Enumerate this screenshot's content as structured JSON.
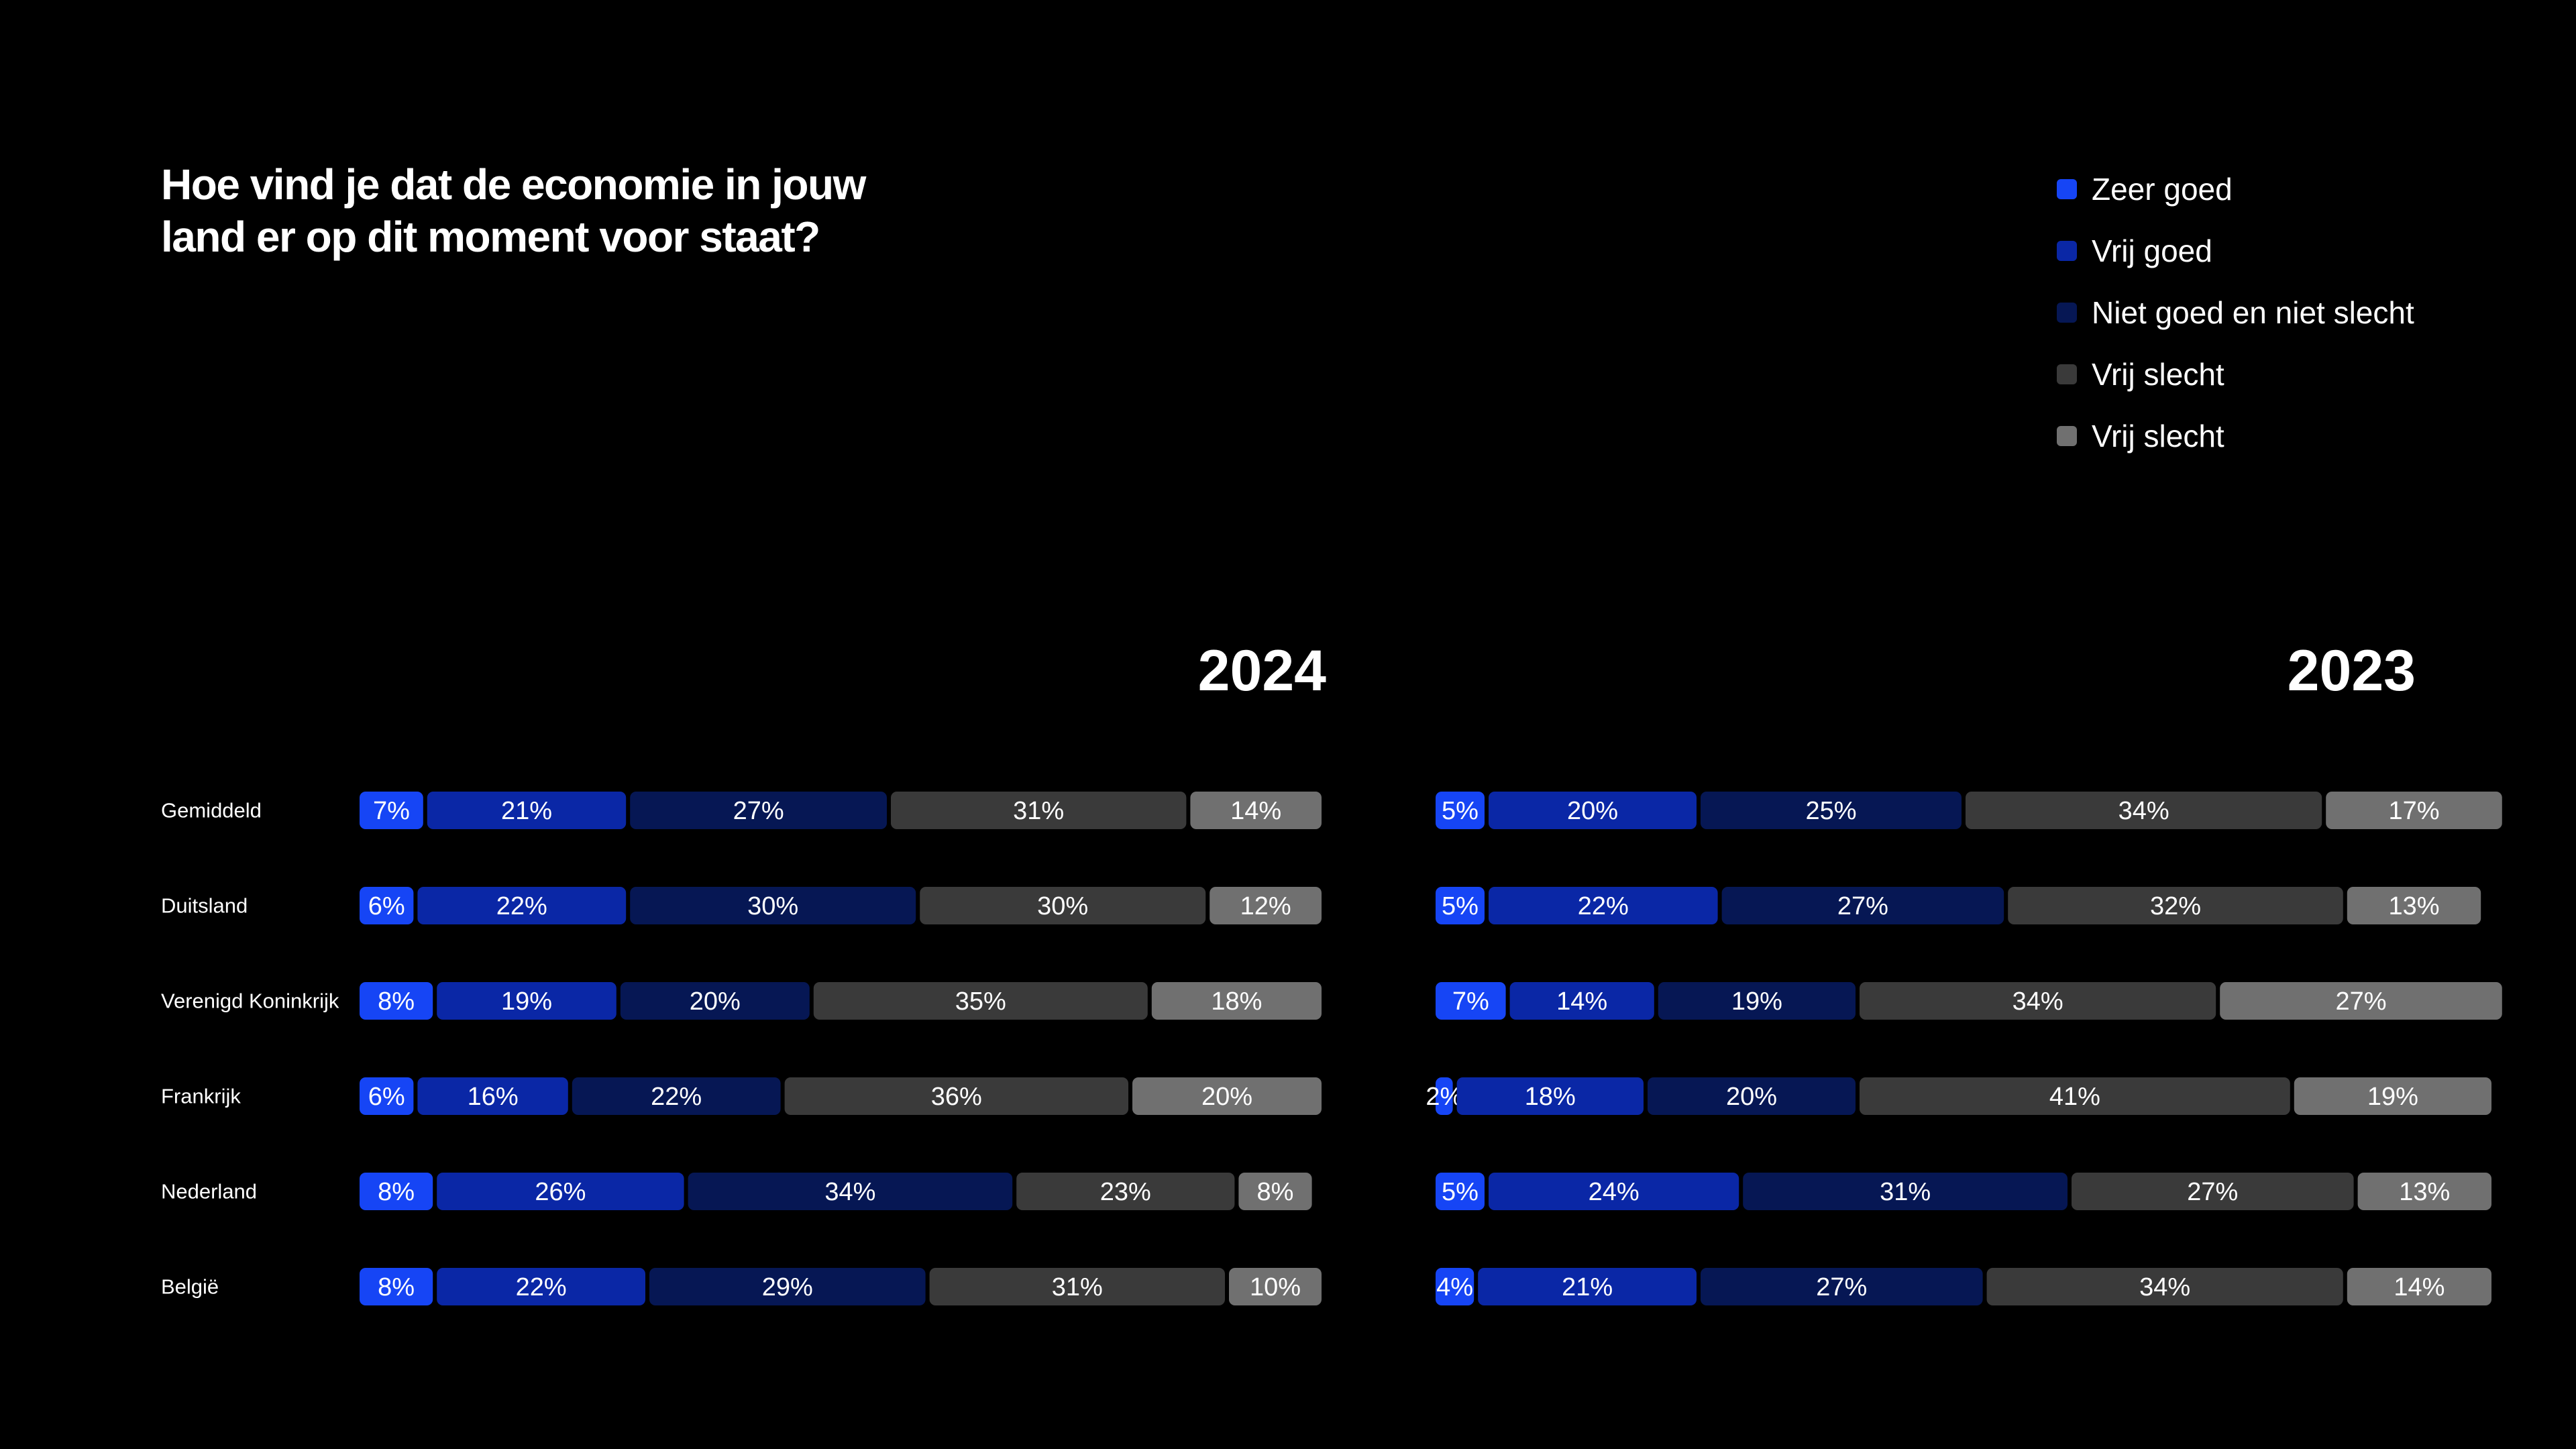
{
  "title": "Hoe vind je dat de economie in jouw land er op dit moment voor staat?",
  "title_lines": [
    "Hoe vind je dat de economie in jouw",
    "land er op dit moment voor staat?"
  ],
  "legend": [
    {
      "label": "Zeer goed",
      "color": "#1645F5"
    },
    {
      "label": "Vrij goed",
      "color": "#0A27A6"
    },
    {
      "label": "Niet goed en niet slecht",
      "color": "#061754"
    },
    {
      "label": "Vrij slecht",
      "color": "#3A3A3A"
    },
    {
      "label": "Vrij slecht",
      "color": "#707070"
    }
  ],
  "chart_data": [
    {
      "type": "bar",
      "orientation": "horizontal",
      "stacked": true,
      "title": "2024",
      "categories": [
        "Gemiddeld",
        "Duitsland",
        "Verenigd Koninkrijk",
        "Frankrijk",
        "Nederland",
        "België"
      ],
      "series": [
        {
          "name": "Zeer goed",
          "values": [
            7,
            6,
            8,
            6,
            8,
            8
          ]
        },
        {
          "name": "Vrij goed",
          "values": [
            21,
            22,
            19,
            16,
            26,
            22
          ]
        },
        {
          "name": "Niet goed en niet slecht",
          "values": [
            27,
            30,
            20,
            22,
            34,
            29
          ]
        },
        {
          "name": "Vrij slecht",
          "values": [
            31,
            30,
            35,
            36,
            23,
            31
          ]
        },
        {
          "name": "Vrij slecht",
          "values": [
            14,
            12,
            18,
            20,
            8,
            10
          ]
        }
      ],
      "unit": "%"
    },
    {
      "type": "bar",
      "orientation": "horizontal",
      "stacked": true,
      "title": "2023",
      "categories": [
        "Gemiddeld",
        "Duitsland",
        "Verenigd Koninkrijk",
        "Frankrijk",
        "Nederland",
        "België"
      ],
      "series": [
        {
          "name": "Zeer goed",
          "values": [
            5,
            5,
            7,
            2,
            5,
            4
          ]
        },
        {
          "name": "Vrij goed",
          "values": [
            20,
            22,
            14,
            18,
            24,
            21
          ]
        },
        {
          "name": "Niet goed en niet slecht",
          "values": [
            25,
            27,
            19,
            20,
            31,
            27
          ]
        },
        {
          "name": "Vrij slecht",
          "values": [
            34,
            32,
            34,
            41,
            27,
            34
          ]
        },
        {
          "name": "Vrij slecht",
          "values": [
            17,
            13,
            27,
            19,
            13,
            14
          ]
        }
      ],
      "unit": "%"
    }
  ]
}
